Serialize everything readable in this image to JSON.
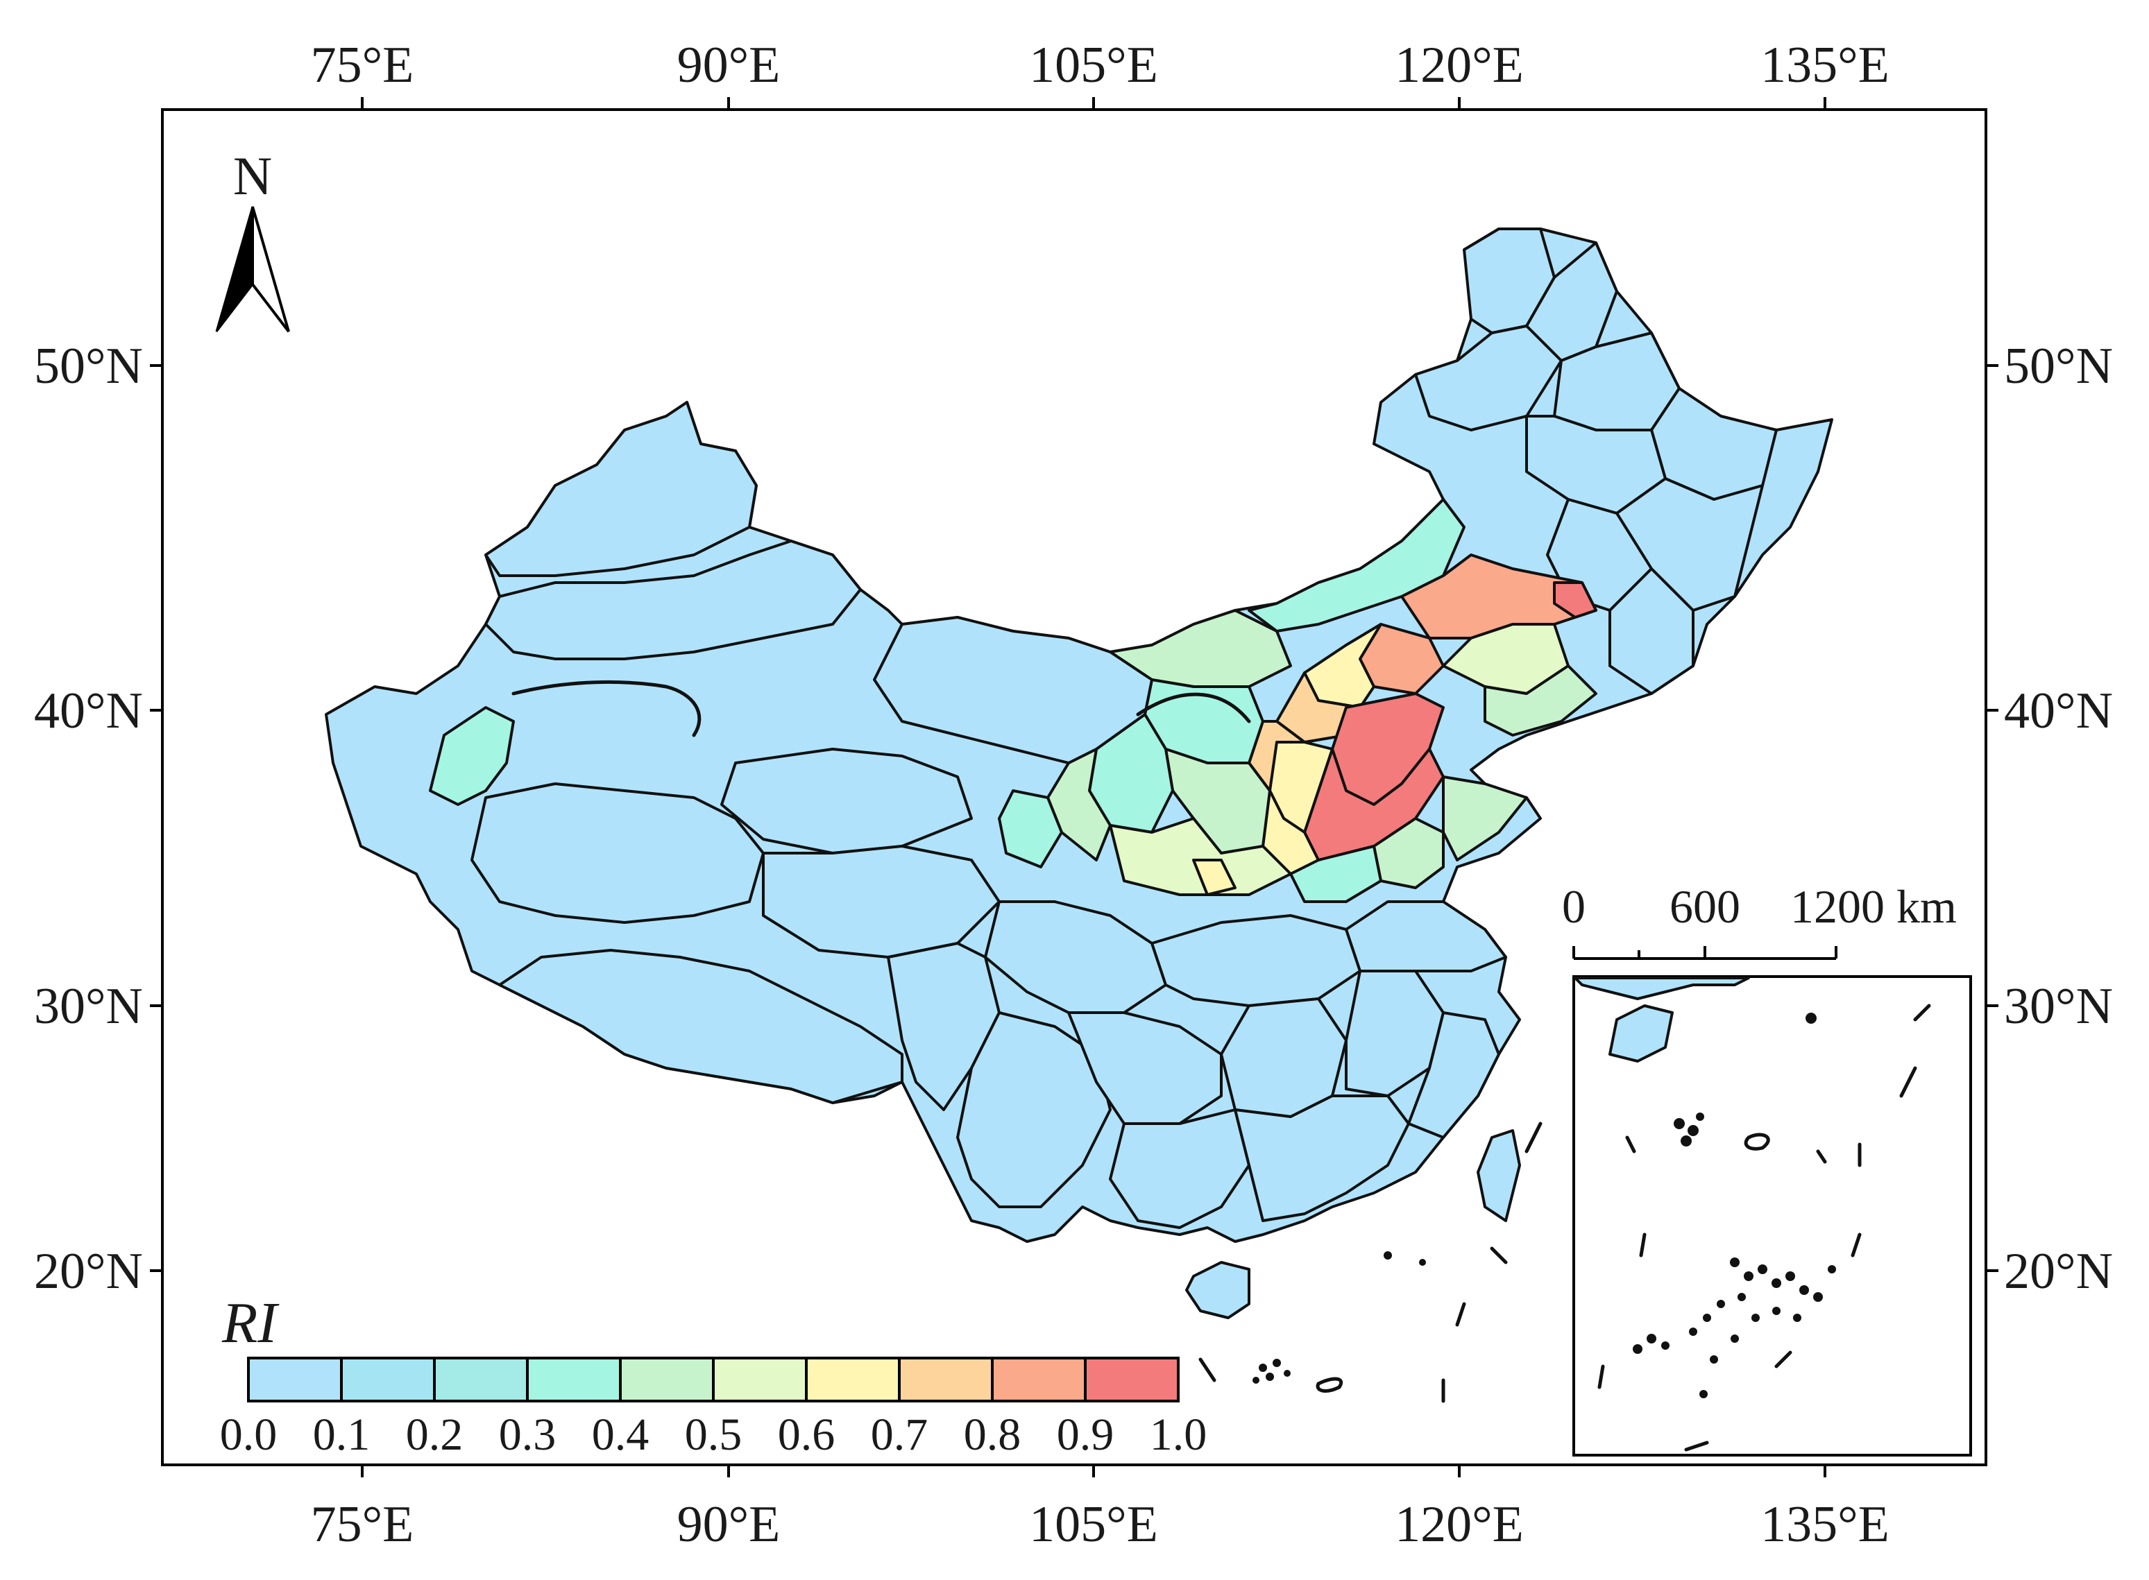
{
  "axes": {
    "top_lon_labels": [
      "75°E",
      "90°E",
      "105°E",
      "120°E",
      "135°E"
    ],
    "bottom_lon_labels": [
      "75°E",
      "90°E",
      "105°E",
      "120°E",
      "135°E"
    ],
    "left_lat_labels": [
      "50°N",
      "40°N",
      "30°N",
      "20°N"
    ],
    "right_lat_labels": [
      "50°N",
      "40°N",
      "30°N",
      "20°N"
    ]
  },
  "north_arrow": {
    "label": "N",
    "icon": "north-arrow-icon"
  },
  "legend": {
    "title": "RI",
    "ticks": [
      "0.0",
      "0.1",
      "0.2",
      "0.3",
      "0.4",
      "0.5",
      "0.6",
      "0.7",
      "0.8",
      "0.9",
      "1.0"
    ],
    "colors": [
      "#b0e3fb",
      "#a5e5f3",
      "#a4eae6",
      "#a5f5e3",
      "#c7f3cc",
      "#e3fac8",
      "#fff6b4",
      "#fdd59c",
      "#fba98b",
      "#f47b7b"
    ]
  },
  "scale_bar": {
    "labels": [
      "0",
      "600",
      "1200 km"
    ]
  },
  "colors": {
    "base_region": "#b0e3fb",
    "outline": "#111111",
    "frame": "#000000"
  }
}
